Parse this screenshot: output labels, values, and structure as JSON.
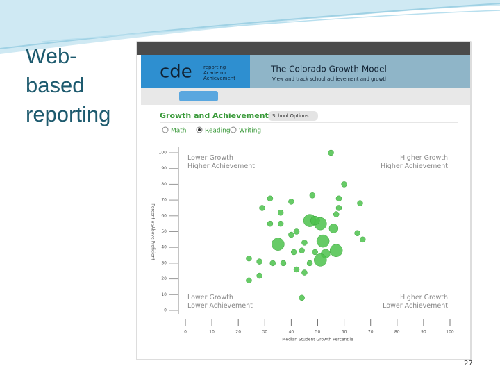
{
  "slide": {
    "title": "Web-based reporting",
    "page_number": "27"
  },
  "app": {
    "logo": "cde",
    "logo_tagline": "reporting Academic Achievement",
    "banner_title": "The Colorado Growth Model",
    "banner_subtitle": "View and track school achievement and growth",
    "section_title": "Growth and Achievement",
    "options_button": "School Options",
    "subjects": [
      "Math",
      "Reading",
      "Writing"
    ],
    "selected_subject": "Reading"
  },
  "chart_data": {
    "type": "scatter",
    "x_label": "Median Student Growth Percentile",
    "y_label": "Percent at/Above Proficient",
    "quadrant_labels": [
      "Lower Growth Higher Achievement",
      "Higher Growth Higher Achievement",
      "Lower Growth Lower Achievement",
      "Higher Growth Lower Achievement"
    ],
    "color": "#4cc24c",
    "xlim": [
      0,
      100
    ],
    "ylim": [
      0,
      100
    ],
    "xticks": [
      0,
      10,
      20,
      30,
      40,
      50,
      60,
      70,
      80,
      90,
      100
    ],
    "yticks": [
      0,
      10,
      20,
      30,
      40,
      50,
      60,
      70,
      80,
      90,
      100
    ],
    "x": [
      55,
      60,
      48,
      58,
      40,
      32,
      29,
      58,
      66,
      36,
      57,
      47,
      51,
      32,
      36,
      56,
      42,
      40,
      65,
      67,
      52,
      35,
      45,
      57,
      41,
      44,
      49,
      53,
      24,
      28,
      33,
      37,
      51,
      47,
      42,
      45,
      24,
      28,
      44,
      49
    ],
    "y": [
      100,
      80,
      73,
      71,
      69,
      71,
      65,
      65,
      68,
      62,
      61,
      57,
      55,
      55,
      55,
      52,
      50,
      48,
      49,
      45,
      44,
      42,
      43,
      38,
      37,
      38,
      37,
      36,
      33,
      31,
      30,
      30,
      32,
      30,
      26,
      24,
      19,
      22,
      8,
      57
    ],
    "sizes": [
      1,
      1,
      1,
      1,
      1,
      1,
      1,
      1,
      1,
      1,
      1,
      3,
      3,
      1,
      1,
      2,
      1,
      1,
      1,
      1,
      3,
      3,
      1,
      3,
      1,
      1,
      1,
      2,
      1,
      1,
      1,
      1,
      3,
      1,
      1,
      1,
      1,
      1,
      1,
      2
    ]
  }
}
